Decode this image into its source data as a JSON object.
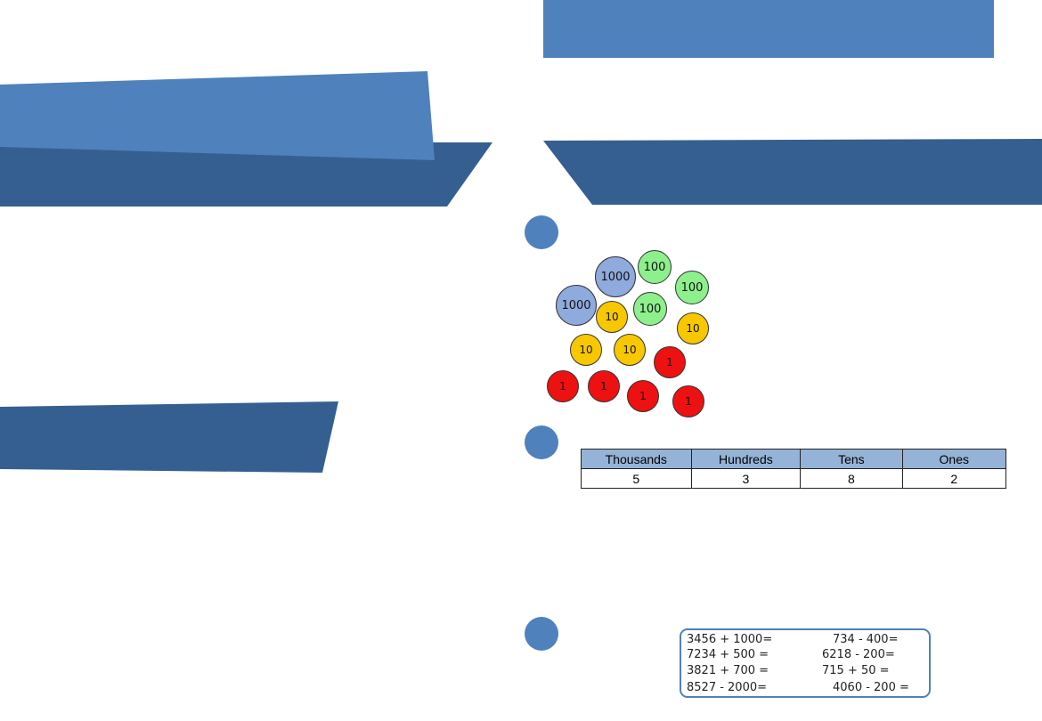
{
  "counters": [
    {
      "label": "1000",
      "kind": "thousand"
    },
    {
      "label": "100",
      "kind": "hundred"
    },
    {
      "label": "100",
      "kind": "hundred"
    },
    {
      "label": "1000",
      "kind": "thousand"
    },
    {
      "label": "10",
      "kind": "ten"
    },
    {
      "label": "100",
      "kind": "hundred"
    },
    {
      "label": "10",
      "kind": "ten"
    },
    {
      "label": "10",
      "kind": "ten"
    },
    {
      "label": "10",
      "kind": "ten"
    },
    {
      "label": "1",
      "kind": "one"
    },
    {
      "label": "1",
      "kind": "one"
    },
    {
      "label": "1",
      "kind": "one"
    },
    {
      "label": "1",
      "kind": "one"
    },
    {
      "label": "1",
      "kind": "one"
    }
  ],
  "colors": {
    "banner_light": "#4f81bd",
    "banner_dark": "#365f91",
    "thousand": "#8faadc",
    "hundred": "#8df08d",
    "ten": "#f7c800",
    "one": "#ee1111",
    "table_header": "#95b3d7"
  },
  "place_value_table": {
    "headers": [
      "Thousands",
      "Hundreds",
      "Tens",
      "Ones"
    ],
    "row": [
      "5",
      "3",
      "8",
      "2"
    ]
  },
  "calculations": {
    "left": [
      "3456 + 1000=",
      "7234 + 500 =",
      "3821 + 700 =",
      "8527 - 2000="
    ],
    "right": [
      "734 - 400=",
      "6218 - 200=",
      "715 + 50 =",
      "4060 - 200 ="
    ]
  }
}
